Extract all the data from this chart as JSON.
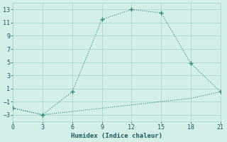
{
  "line1_x": [
    0,
    3,
    6,
    9,
    12,
    15,
    18,
    21
  ],
  "line1_y": [
    -2,
    -3,
    0.5,
    11.5,
    13,
    12.5,
    4.8,
    0.5
  ],
  "line2_x": [
    0,
    3,
    6,
    9,
    12,
    15,
    18,
    21
  ],
  "line2_y": [
    -2,
    -3,
    -2.5,
    -2.0,
    -1.5,
    -1.0,
    -0.5,
    0.5
  ],
  "line_color": "#2a8a7a",
  "bg_color": "#d4eeea",
  "grid_color": "#aed4ce",
  "xlabel": "Humidex (Indice chaleur)",
  "xlim": [
    0,
    21
  ],
  "ylim": [
    -4,
    14
  ],
  "xticks": [
    0,
    3,
    6,
    9,
    12,
    15,
    18,
    21
  ],
  "yticks": [
    -3,
    -1,
    1,
    3,
    5,
    7,
    9,
    11,
    13
  ],
  "font_color": "#1a5c5c",
  "xlabel_fontsize": 6.5,
  "tick_fontsize": 6
}
